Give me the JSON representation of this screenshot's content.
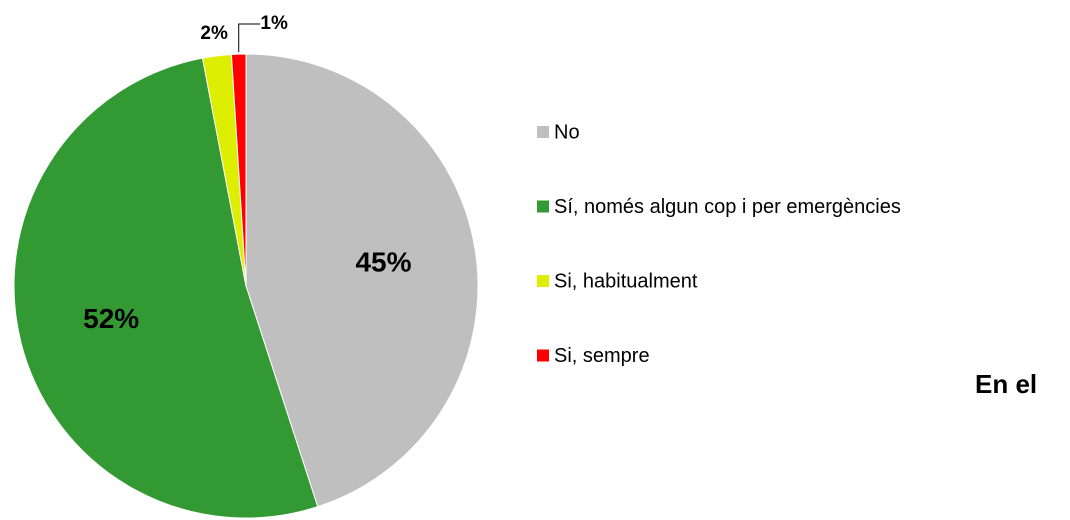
{
  "chart_data": {
    "type": "pie",
    "categories": [
      "No",
      "Sí, només algun cop i per emergències",
      "Si, habitualment",
      "Si, sempre"
    ],
    "values": [
      45,
      52,
      2,
      1
    ],
    "value_labels": [
      "45%",
      "52%",
      "2%",
      "1%"
    ],
    "colors": [
      "#bfbfbf",
      "#339933",
      "#ddee00",
      "#ff0000"
    ],
    "annotation": "En el",
    "legend": "right"
  }
}
